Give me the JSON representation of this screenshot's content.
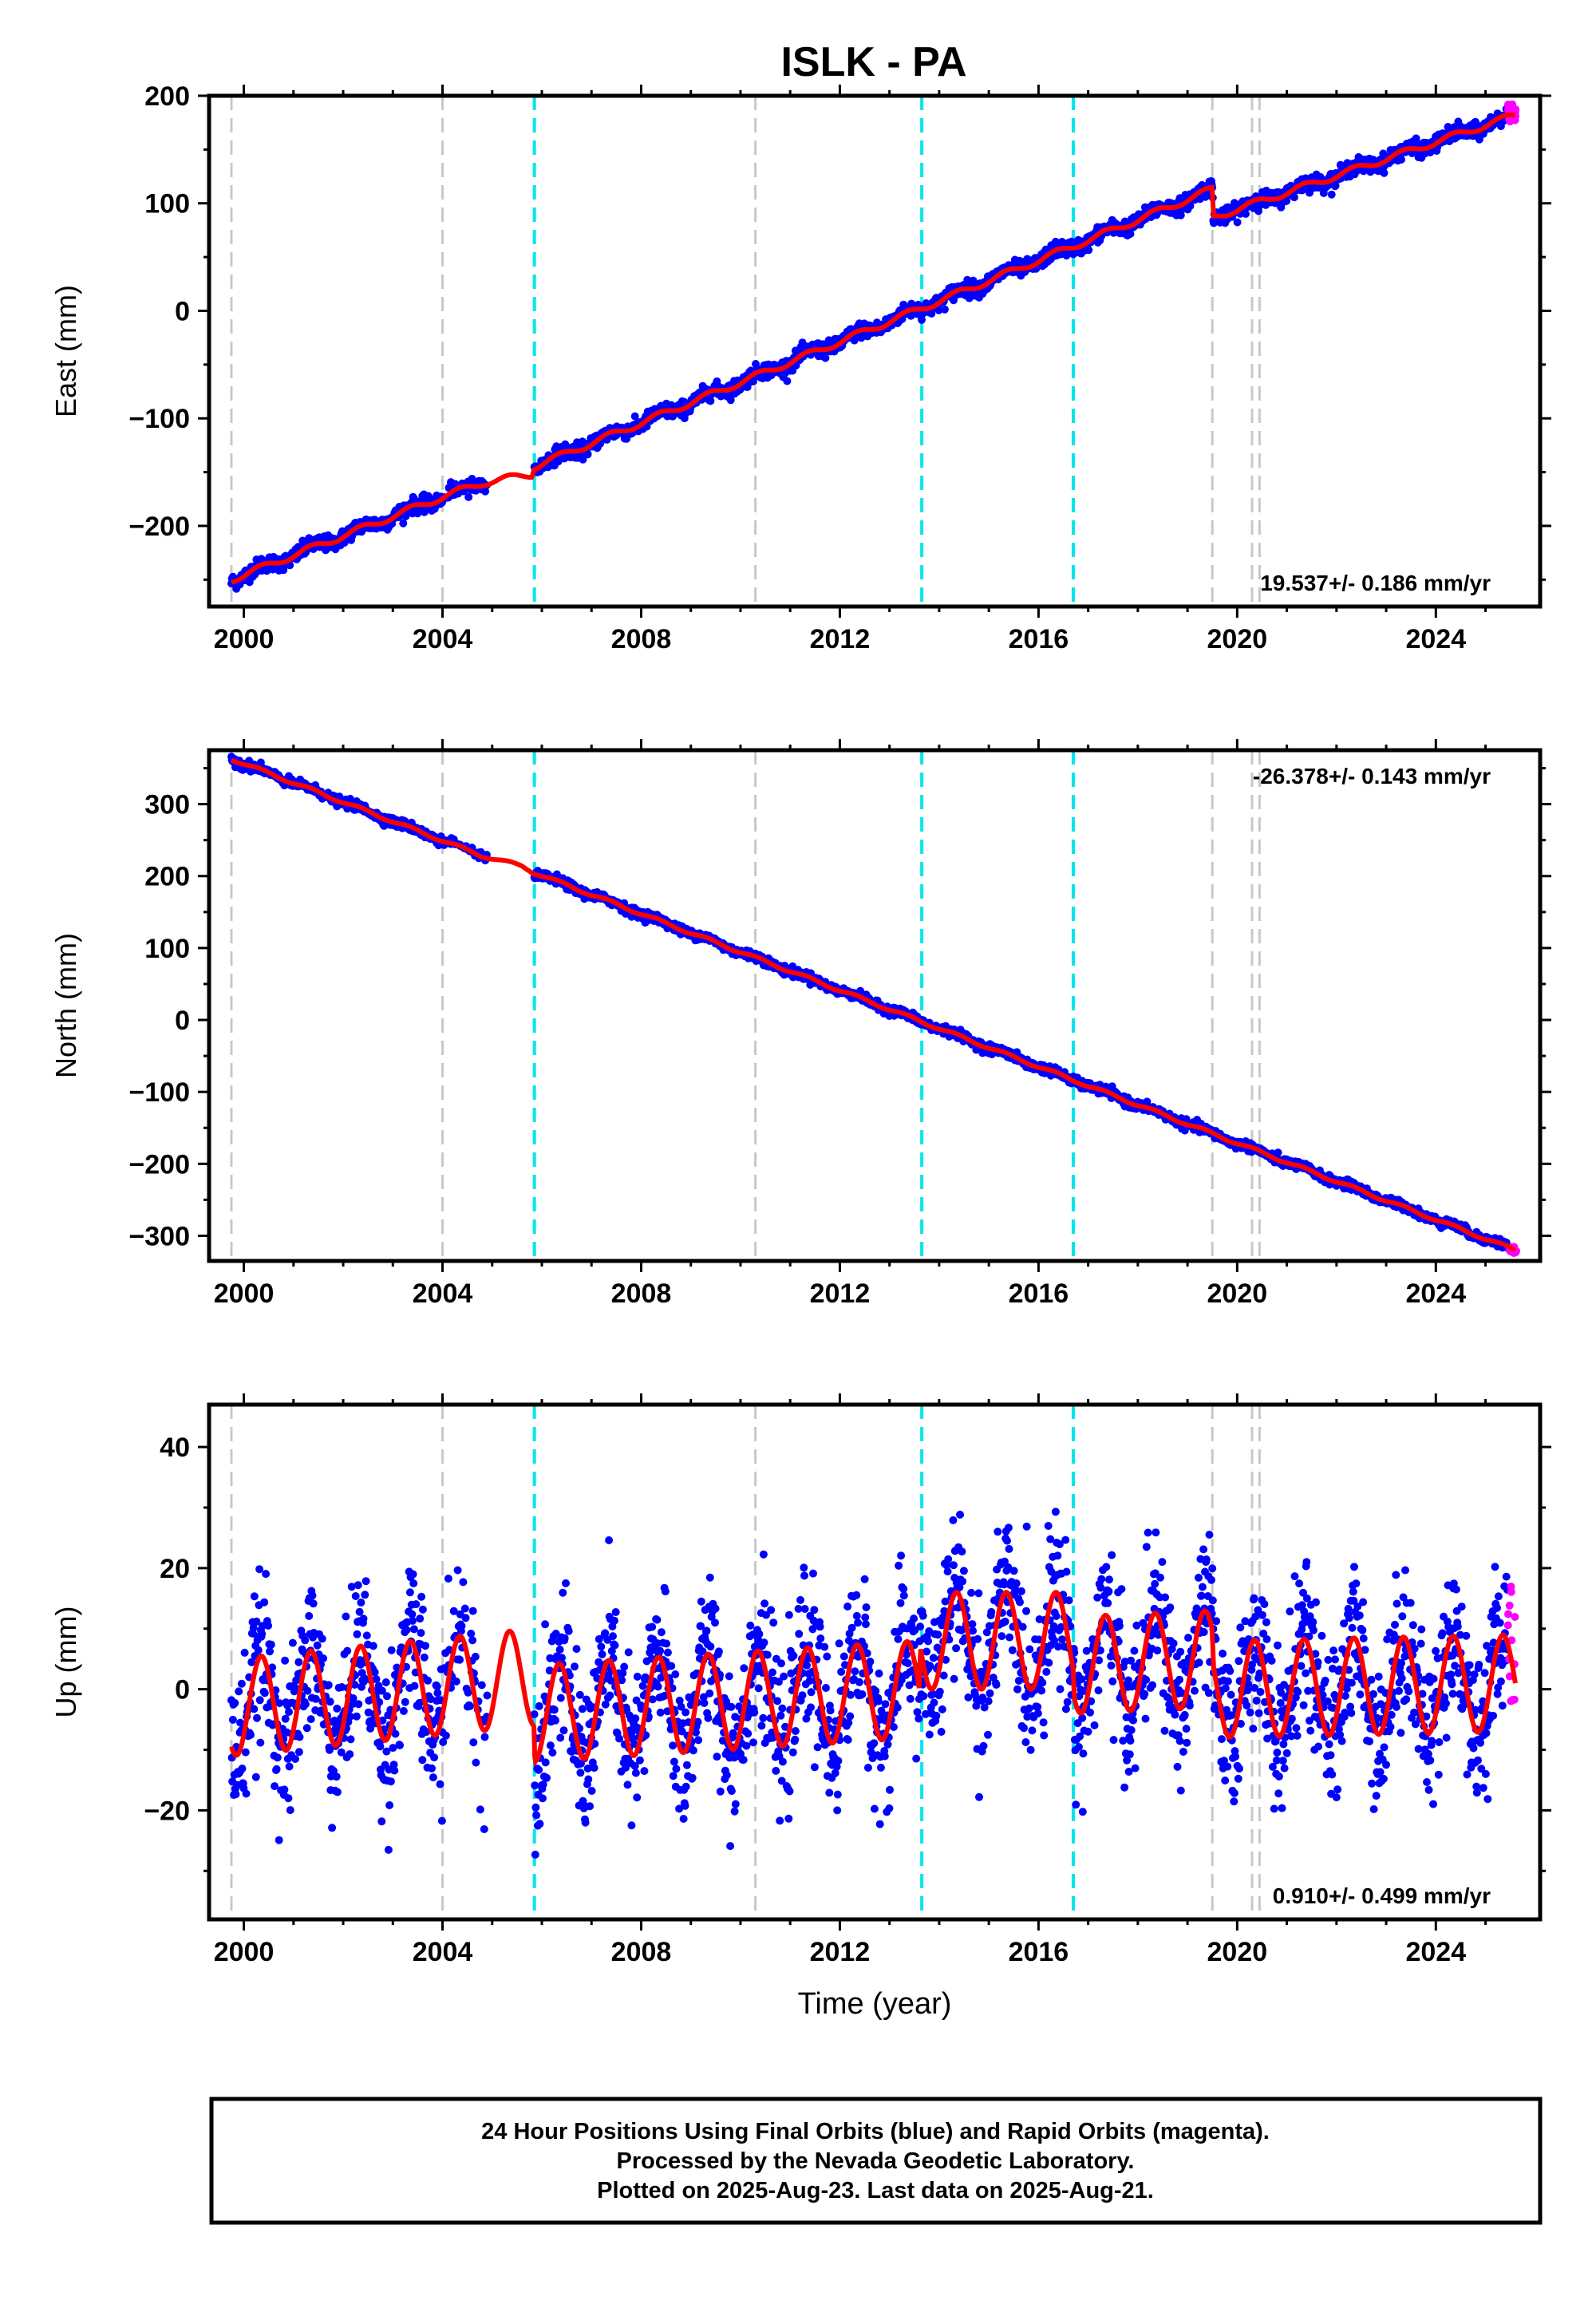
{
  "title": "ISLK - PA",
  "footer": {
    "line1": "24 Hour Positions Using Final Orbits (blue) and Rapid Orbits (magenta).",
    "line2": "Processed by the Nevada Geodetic Laboratory.",
    "line3": "Plotted on 2025-Aug-23. Last data on 2025-Aug-21."
  },
  "colors": {
    "final": "#0000ff",
    "rapid": "#ff00ff",
    "model": "#ff0000",
    "equipment_change": "#c8c8c8",
    "event": "#00e5ee"
  },
  "chart_data": [
    {
      "type": "scatter",
      "component": "East",
      "ylabel": "East (mm)",
      "xlim": [
        1999.3,
        2026.1
      ],
      "ylim": [
        -275,
        200
      ],
      "yticks": [
        200,
        100,
        0,
        -100,
        -200
      ],
      "xticks": [
        2000,
        2004,
        2008,
        2012,
        2016,
        2020,
        2024
      ],
      "rate_label": "19.537+/- 0.186 mm/yr",
      "rate_position": "bottom-right",
      "model_knots": [
        [
          1999.75,
          -250
        ],
        [
          2004.0,
          -173
        ],
        [
          2004.8,
          -160
        ],
        [
          2005.8,
          -152
        ],
        [
          2005.84,
          -145
        ],
        [
          2019.5,
          113
        ],
        [
          2019.52,
          87
        ],
        [
          2025.6,
          182
        ]
      ],
      "noise_mm": 3.5,
      "seasonal_amp_mm": 3,
      "gap": [
        2004.9,
        2005.84
      ],
      "rapid": {
        "x_range": [
          2025.45,
          2025.62
        ],
        "y_range": [
          176,
          192
        ]
      }
    },
    {
      "type": "scatter",
      "component": "North",
      "ylabel": "North (mm)",
      "xlim": [
        1999.3,
        2026.1
      ],
      "ylim": [
        -335,
        375
      ],
      "yticks": [
        300,
        200,
        100,
        0,
        -100,
        -200,
        -300
      ],
      "xticks": [
        2000,
        2004,
        2008,
        2012,
        2016,
        2020,
        2024
      ],
      "rate_label": "-26.378+/- 0.143 mm/yr",
      "rate_position": "top-right",
      "model_knots": [
        [
          1999.75,
          363
        ],
        [
          2004.8,
          228
        ],
        [
          2005.6,
          214
        ],
        [
          2005.84,
          205
        ],
        [
          2025.6,
          -320
        ]
      ],
      "noise_mm": 3,
      "seasonal_amp_mm": 2,
      "gap": [
        2004.9,
        2005.84
      ],
      "rapid": {
        "x_range": [
          2025.45,
          2025.62
        ],
        "y_range": [
          -324,
          -314
        ]
      }
    },
    {
      "type": "scatter",
      "component": "Up",
      "ylabel": "Up (mm)",
      "xlabel": "Time (year)",
      "xlim": [
        1999.3,
        2026.1
      ],
      "ylim": [
        -38,
        47
      ],
      "yticks": [
        40,
        20,
        0,
        -20
      ],
      "xticks": [
        2000,
        2004,
        2008,
        2012,
        2016,
        2020,
        2024
      ],
      "rate_label": "0.910+/- 0.499 mm/yr",
      "rate_position": "bottom-right",
      "model_knots": [
        [
          1999.75,
          -3
        ],
        [
          2005.84,
          2
        ],
        [
          2005.86,
          -4
        ],
        [
          2013.6,
          0
        ],
        [
          2013.62,
          8
        ],
        [
          2016.7,
          8
        ],
        [
          2016.72,
          4
        ],
        [
          2019.5,
          5
        ],
        [
          2019.52,
          0
        ],
        [
          2025.6,
          1
        ]
      ],
      "noise_mm": 6,
      "seasonal_amp_mm": 8,
      "gap": [
        2004.9,
        2005.84
      ],
      "rapid": {
        "x_range": [
          2025.45,
          2025.62
        ],
        "y_range": [
          -2,
          19
        ]
      }
    }
  ],
  "vertical_lines": {
    "equipment_change": [
      1999.75,
      2004.0,
      2010.3,
      2019.5,
      2020.3,
      2020.45
    ],
    "event": [
      2005.85,
      2013.65,
      2016.7
    ]
  }
}
